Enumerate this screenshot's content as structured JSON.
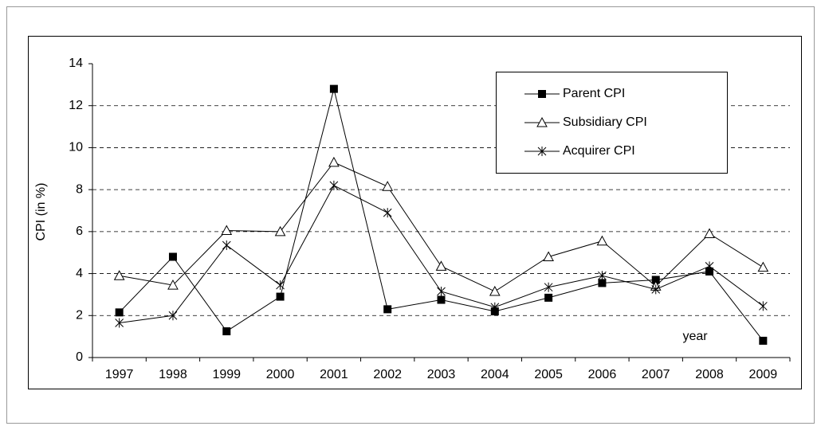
{
  "chart_data": {
    "type": "line",
    "y_label": "CPI (in %)",
    "annotation": "year",
    "categories": [
      "1997",
      "1998",
      "1999",
      "2000",
      "2001",
      "2002",
      "2003",
      "2004",
      "2005",
      "2006",
      "2007",
      "2008",
      "2009"
    ],
    "series": [
      {
        "name": "Parent CPI",
        "color": "#000000",
        "marker": "square",
        "values": [
          2.15,
          4.8,
          1.25,
          2.9,
          12.8,
          2.3,
          2.75,
          2.2,
          2.85,
          3.55,
          3.7,
          4.1,
          0.8
        ]
      },
      {
        "name": "Subsidiary CPI",
        "color": "#000000",
        "marker": "triangle",
        "values": [
          3.9,
          3.45,
          6.05,
          6.0,
          9.3,
          8.15,
          4.35,
          3.15,
          4.8,
          5.55,
          3.4,
          5.9,
          4.3
        ]
      },
      {
        "name": "Acquirer CPI",
        "color": "#000000",
        "marker": "asterisk",
        "values": [
          1.65,
          2.0,
          5.35,
          3.45,
          8.2,
          6.9,
          3.15,
          2.4,
          3.35,
          3.9,
          3.25,
          4.35,
          2.45
        ]
      }
    ],
    "ylim": [
      0,
      14
    ],
    "yticks": [
      0,
      2,
      4,
      6,
      8,
      10,
      12,
      14
    ],
    "grid": true,
    "legend": "top-right"
  }
}
